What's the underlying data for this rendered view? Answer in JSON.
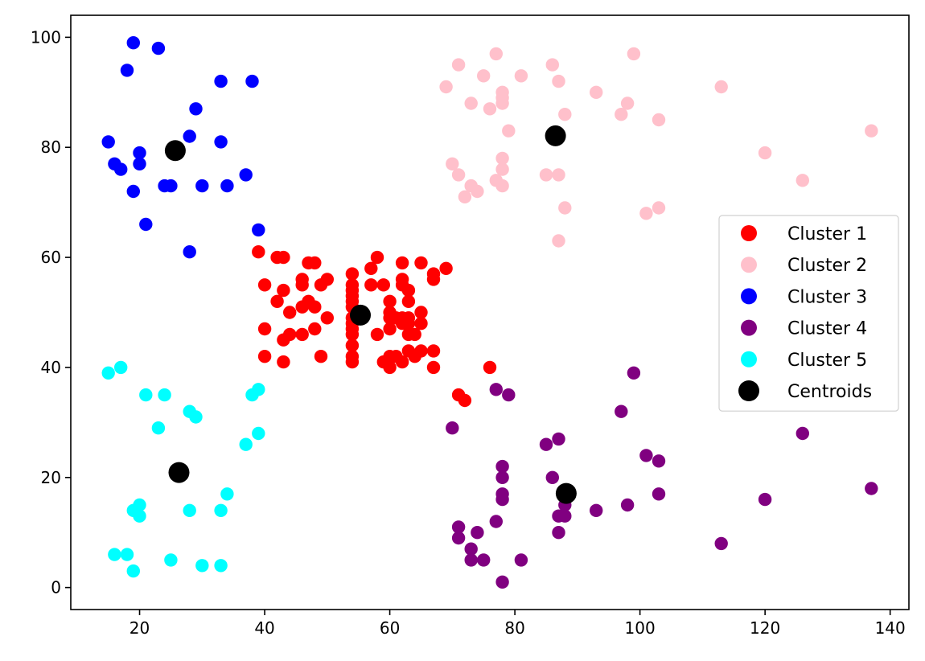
{
  "chart_data": {
    "type": "scatter",
    "title": "",
    "xlabel": "",
    "ylabel": "",
    "xlim": [
      9,
      143
    ],
    "ylim": [
      -4,
      104
    ],
    "xticks": [
      20,
      40,
      60,
      80,
      100,
      120,
      140
    ],
    "yticks": [
      0,
      20,
      40,
      60,
      80,
      100
    ],
    "grid": false,
    "legend_position": "right",
    "series": [
      {
        "name": "Cluster 1",
        "color": "#ff0000",
        "points": [
          [
            39,
            61
          ],
          [
            40,
            55
          ],
          [
            40,
            47
          ],
          [
            40,
            42
          ],
          [
            42,
            60
          ],
          [
            42,
            52
          ],
          [
            43,
            60
          ],
          [
            43,
            54
          ],
          [
            43,
            45
          ],
          [
            43,
            41
          ],
          [
            44,
            50
          ],
          [
            44,
            46
          ],
          [
            46,
            56
          ],
          [
            46,
            55
          ],
          [
            46,
            51
          ],
          [
            46,
            46
          ],
          [
            47,
            59
          ],
          [
            47,
            52
          ],
          [
            48,
            59
          ],
          [
            48,
            51
          ],
          [
            48,
            47
          ],
          [
            49,
            55
          ],
          [
            49,
            42
          ],
          [
            50,
            56
          ],
          [
            50,
            49
          ],
          [
            54,
            57
          ],
          [
            54,
            55
          ],
          [
            54,
            54
          ],
          [
            54,
            53
          ],
          [
            54,
            52
          ],
          [
            54,
            51
          ],
          [
            54,
            49
          ],
          [
            54,
            48
          ],
          [
            54,
            47
          ],
          [
            54,
            46
          ],
          [
            54,
            44
          ],
          [
            54,
            42
          ],
          [
            54,
            41
          ],
          [
            57,
            58
          ],
          [
            57,
            55
          ],
          [
            58,
            60
          ],
          [
            58,
            46
          ],
          [
            59,
            55
          ],
          [
            59,
            41
          ],
          [
            60,
            52
          ],
          [
            60,
            50
          ],
          [
            60,
            49
          ],
          [
            60,
            47
          ],
          [
            60,
            42
          ],
          [
            60,
            40
          ],
          [
            61,
            49
          ],
          [
            61,
            42
          ],
          [
            62,
            59
          ],
          [
            62,
            56
          ],
          [
            62,
            55
          ],
          [
            62,
            49
          ],
          [
            62,
            48
          ],
          [
            62,
            41
          ],
          [
            63,
            54
          ],
          [
            63,
            52
          ],
          [
            63,
            49
          ],
          [
            63,
            48
          ],
          [
            63,
            46
          ],
          [
            63,
            43
          ],
          [
            64,
            46
          ],
          [
            64,
            42
          ],
          [
            65,
            59
          ],
          [
            65,
            50
          ],
          [
            65,
            48
          ],
          [
            65,
            43
          ],
          [
            67,
            57
          ],
          [
            67,
            56
          ],
          [
            67,
            43
          ],
          [
            67,
            40
          ],
          [
            69,
            58
          ],
          [
            71,
            35
          ],
          [
            72,
            34
          ],
          [
            76,
            40
          ]
        ]
      },
      {
        "name": "Cluster 2",
        "color": "#ffc0cb",
        "points": [
          [
            69,
            91
          ],
          [
            70,
            77
          ],
          [
            71,
            95
          ],
          [
            71,
            75
          ],
          [
            72,
            71
          ],
          [
            73,
            88
          ],
          [
            73,
            73
          ],
          [
            74,
            72
          ],
          [
            75,
            93
          ],
          [
            76,
            87
          ],
          [
            77,
            97
          ],
          [
            77,
            74
          ],
          [
            78,
            90
          ],
          [
            78,
            89
          ],
          [
            78,
            88
          ],
          [
            78,
            78
          ],
          [
            78,
            76
          ],
          [
            78,
            73
          ],
          [
            79,
            83
          ],
          [
            81,
            93
          ],
          [
            85,
            75
          ],
          [
            86,
            95
          ],
          [
            87,
            92
          ],
          [
            87,
            75
          ],
          [
            87,
            63
          ],
          [
            88,
            86
          ],
          [
            88,
            69
          ],
          [
            93,
            90
          ],
          [
            97,
            86
          ],
          [
            98,
            88
          ],
          [
            99,
            97
          ],
          [
            101,
            68
          ],
          [
            103,
            85
          ],
          [
            103,
            69
          ],
          [
            113,
            91
          ],
          [
            120,
            79
          ],
          [
            126,
            74
          ],
          [
            137,
            83
          ]
        ]
      },
      {
        "name": "Cluster 3",
        "color": "#0000ff",
        "points": [
          [
            15,
            81
          ],
          [
            16,
            77
          ],
          [
            17,
            76
          ],
          [
            18,
            94
          ],
          [
            19,
            99
          ],
          [
            19,
            72
          ],
          [
            20,
            79
          ],
          [
            20,
            77
          ],
          [
            21,
            66
          ],
          [
            23,
            98
          ],
          [
            24,
            73
          ],
          [
            25,
            73
          ],
          [
            28,
            82
          ],
          [
            28,
            61
          ],
          [
            29,
            87
          ],
          [
            30,
            73
          ],
          [
            33,
            92
          ],
          [
            33,
            81
          ],
          [
            34,
            73
          ],
          [
            37,
            75
          ],
          [
            38,
            92
          ],
          [
            39,
            65
          ]
        ]
      },
      {
        "name": "Cluster 4",
        "color": "#800080",
        "points": [
          [
            70,
            29
          ],
          [
            71,
            11
          ],
          [
            71,
            9
          ],
          [
            73,
            7
          ],
          [
            73,
            5
          ],
          [
            74,
            10
          ],
          [
            75,
            5
          ],
          [
            77,
            36
          ],
          [
            77,
            12
          ],
          [
            78,
            22
          ],
          [
            78,
            20
          ],
          [
            78,
            17
          ],
          [
            78,
            16
          ],
          [
            78,
            1
          ],
          [
            79,
            35
          ],
          [
            81,
            5
          ],
          [
            85,
            26
          ],
          [
            86,
            20
          ],
          [
            87,
            27
          ],
          [
            87,
            13
          ],
          [
            87,
            10
          ],
          [
            88,
            13
          ],
          [
            88,
            15
          ],
          [
            93,
            14
          ],
          [
            97,
            32
          ],
          [
            98,
            15
          ],
          [
            99,
            39
          ],
          [
            101,
            24
          ],
          [
            103,
            23
          ],
          [
            103,
            17
          ],
          [
            113,
            8
          ],
          [
            120,
            16
          ],
          [
            126,
            28
          ],
          [
            137,
            18
          ]
        ]
      },
      {
        "name": "Cluster 5",
        "color": "#00ffff",
        "points": [
          [
            15,
            39
          ],
          [
            16,
            6
          ],
          [
            17,
            40
          ],
          [
            18,
            6
          ],
          [
            19,
            14
          ],
          [
            19,
            3
          ],
          [
            20,
            15
          ],
          [
            20,
            13
          ],
          [
            21,
            35
          ],
          [
            23,
            29
          ],
          [
            24,
            35
          ],
          [
            25,
            5
          ],
          [
            28,
            32
          ],
          [
            28,
            14
          ],
          [
            29,
            31
          ],
          [
            30,
            4
          ],
          [
            33,
            14
          ],
          [
            33,
            4
          ],
          [
            34,
            17
          ],
          [
            37,
            26
          ],
          [
            38,
            35
          ],
          [
            39,
            36
          ],
          [
            39,
            28
          ]
        ]
      },
      {
        "name": "Centroids",
        "color": "#000000",
        "points": [
          [
            55.3,
            49.5
          ],
          [
            86.5,
            82.1
          ],
          [
            25.7,
            79.4
          ],
          [
            88.2,
            17.1
          ],
          [
            26.3,
            20.9
          ]
        ]
      }
    ]
  }
}
